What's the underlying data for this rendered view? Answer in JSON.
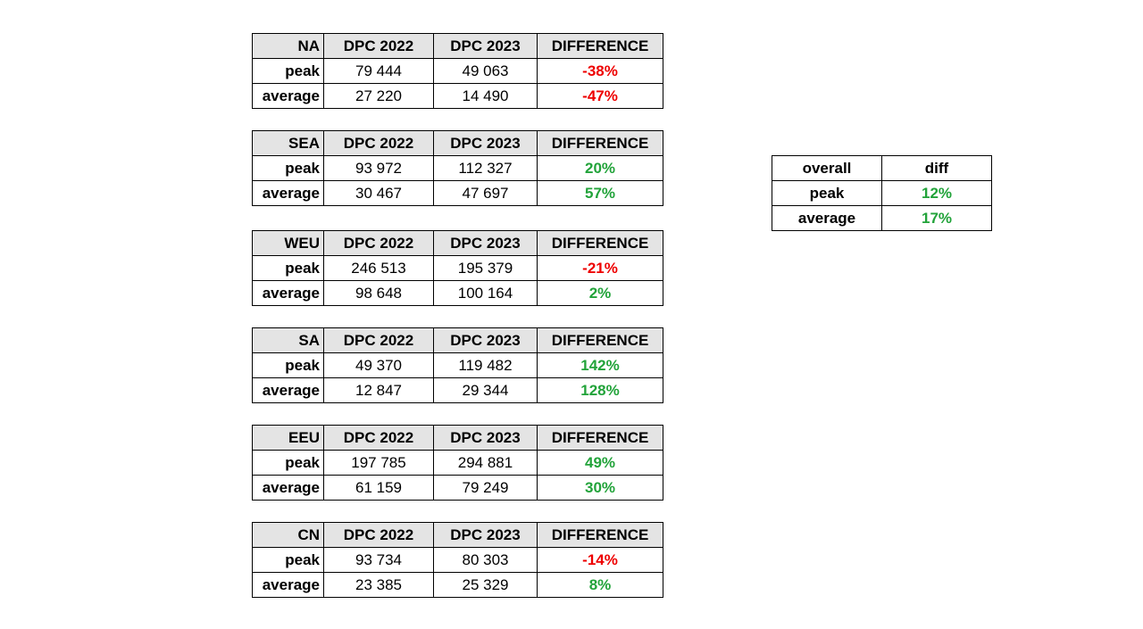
{
  "colors": {
    "header_bg": "#e4e4e4",
    "negative": "#ee0000",
    "positive": "#22a33a"
  },
  "regions": [
    {
      "name": "NA",
      "col1": "DPC 2022",
      "col2": "DPC 2023",
      "col3": "DIFFERENCE",
      "rows": [
        {
          "label": "peak",
          "v2022": "79 444",
          "v2023": "49 063",
          "diff": "-38%",
          "sign": "neg"
        },
        {
          "label": "average",
          "v2022": "27 220",
          "v2023": "14 490",
          "diff": "-47%",
          "sign": "neg"
        }
      ]
    },
    {
      "name": "SEA",
      "col1": "DPC 2022",
      "col2": "DPC 2023",
      "col3": "DIFFERENCE",
      "rows": [
        {
          "label": "peak",
          "v2022": "93 972",
          "v2023": "112 327",
          "diff": "20%",
          "sign": "pos"
        },
        {
          "label": "average",
          "v2022": "30 467",
          "v2023": "47 697",
          "diff": "57%",
          "sign": "pos"
        }
      ]
    },
    {
      "name": "WEU",
      "col1": "DPC 2022",
      "col2": "DPC 2023",
      "col3": "DIFFERENCE",
      "rows": [
        {
          "label": "peak",
          "v2022": "246 513",
          "v2023": "195 379",
          "diff": "-21%",
          "sign": "neg"
        },
        {
          "label": "average",
          "v2022": "98 648",
          "v2023": "100 164",
          "diff": "2%",
          "sign": "pos"
        }
      ]
    },
    {
      "name": "SA",
      "col1": "DPC 2022",
      "col2": "DPC 2023",
      "col3": "DIFFERENCE",
      "rows": [
        {
          "label": "peak",
          "v2022": "49 370",
          "v2023": "119 482",
          "diff": "142%",
          "sign": "pos"
        },
        {
          "label": "average",
          "v2022": "12 847",
          "v2023": "29 344",
          "diff": "128%",
          "sign": "pos"
        }
      ]
    },
    {
      "name": "EEU",
      "col1": "DPC 2022",
      "col2": "DPC 2023",
      "col3": "DIFFERENCE",
      "rows": [
        {
          "label": "peak",
          "v2022": "197 785",
          "v2023": "294 881",
          "diff": "49%",
          "sign": "pos"
        },
        {
          "label": "average",
          "v2022": "61 159",
          "v2023": "79 249",
          "diff": "30%",
          "sign": "pos"
        }
      ]
    },
    {
      "name": "CN",
      "col1": "DPC 2022",
      "col2": "DPC 2023",
      "col3": "DIFFERENCE",
      "rows": [
        {
          "label": "peak",
          "v2022": "93 734",
          "v2023": "80 303",
          "diff": "-14%",
          "sign": "neg"
        },
        {
          "label": "average",
          "v2022": "23 385",
          "v2023": "25 329",
          "diff": "8%",
          "sign": "pos"
        }
      ]
    }
  ],
  "overall": {
    "header_label": "overall",
    "header_diff": "diff",
    "rows": [
      {
        "label": "peak",
        "diff": "12%",
        "sign": "pos"
      },
      {
        "label": "average",
        "diff": "17%",
        "sign": "pos"
      }
    ]
  }
}
